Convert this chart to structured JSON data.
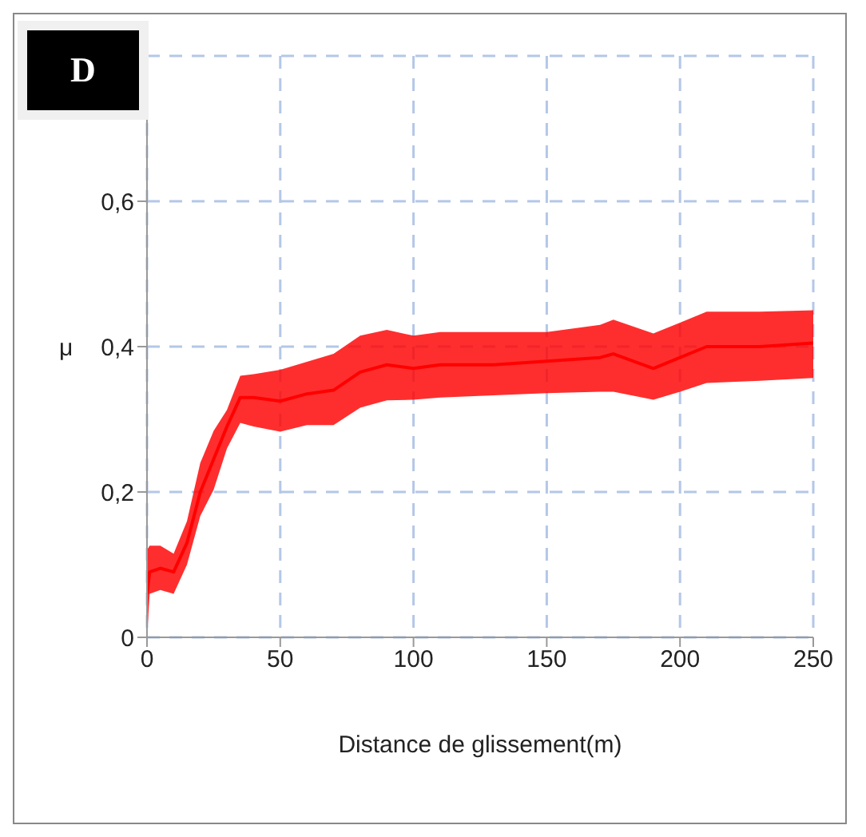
{
  "chart_data": {
    "type": "line",
    "xlabel": "Distance de glissement(m)",
    "ylabel": "μ",
    "annotations": [
      "D"
    ],
    "xlim": [
      0,
      250
    ],
    "xticks": [
      0,
      50,
      100,
      150,
      200,
      250
    ],
    "ylim": [
      0,
      0.8
    ],
    "yticks": [
      0,
      {
        "value": 0.2,
        "label": "0,2"
      },
      {
        "value": 0.4,
        "label": "0,4"
      },
      {
        "value": 0.6,
        "label": "0,6"
      },
      {
        "value": 0.8,
        "label": null
      }
    ],
    "grid": true,
    "legend": false,
    "marker": "none",
    "line_style": "solid",
    "x": [
      0,
      1,
      5,
      10,
      15,
      20,
      25,
      30,
      35,
      40,
      50,
      60,
      70,
      80,
      90,
      100,
      110,
      130,
      150,
      170,
      175,
      190,
      200,
      210,
      230,
      250
    ],
    "series": [
      {
        "color": "#ff0000",
        "values": [
          0.06,
          0.09,
          0.095,
          0.09,
          0.13,
          0.2,
          0.245,
          0.29,
          0.33,
          0.33,
          0.325,
          0.335,
          0.34,
          0.365,
          0.375,
          0.37,
          0.375,
          0.375,
          0.38,
          0.385,
          0.39,
          0.37,
          0.385,
          0.4,
          0.4,
          0.405
        ],
        "lower": [
          0,
          0.06,
          0.065,
          0.06,
          0.1,
          0.167,
          0.203,
          0.26,
          0.295,
          0.29,
          0.283,
          0.292,
          0.292,
          0.316,
          0.326,
          0.327,
          0.33,
          0.333,
          0.336,
          0.338,
          0.338,
          0.327,
          0.338,
          0.35,
          0.353,
          0.357
        ],
        "upper": [
          0.12,
          0.126,
          0.126,
          0.115,
          0.16,
          0.24,
          0.284,
          0.313,
          0.36,
          0.362,
          0.368,
          0.379,
          0.39,
          0.415,
          0.423,
          0.415,
          0.42,
          0.42,
          0.42,
          0.43,
          0.437,
          0.418,
          0.433,
          0.448,
          0.448,
          0.45
        ]
      }
    ]
  }
}
